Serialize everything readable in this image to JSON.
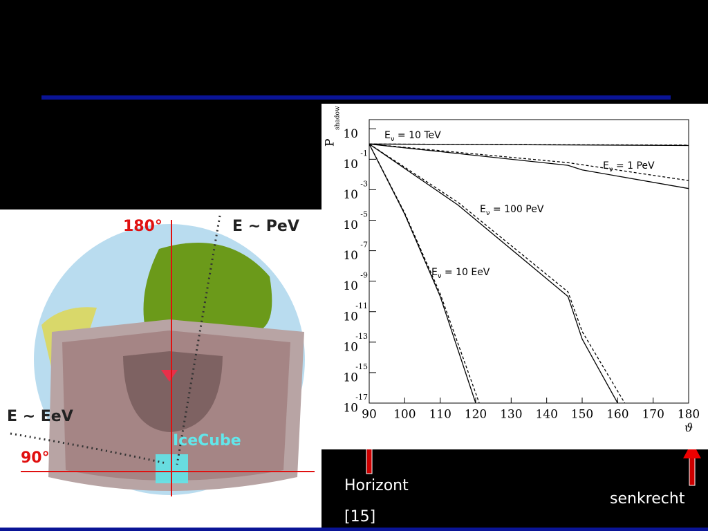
{
  "slide": {
    "angle_180": "180°",
    "label_pev": "E ~ PeV",
    "label_eev": "E ~ EeV",
    "angle_90": "90°",
    "icecube": "IceCube",
    "horizont": "Horizont",
    "citation": "[15]",
    "senkrecht": "senkrecht"
  },
  "chart_data": {
    "type": "line",
    "y_label": "P",
    "y_label_sub": "shadow",
    "x_label": "ϑ",
    "log_y": true,
    "xlim": [
      90,
      180
    ],
    "xticks": [
      90,
      100,
      110,
      120,
      130,
      140,
      150,
      160,
      170,
      180
    ],
    "ylim": [
      1e-17,
      40
    ],
    "yticks": [
      10,
      {
        "value": 0.1,
        "label": "10",
        "exponent": "-1"
      },
      {
        "value": 0.001,
        "label": "10",
        "exponent": "-3"
      },
      {
        "value": 1e-05,
        "label": "10",
        "exponent": "-5"
      },
      {
        "value": 1e-07,
        "label": "10",
        "exponent": "-7"
      },
      {
        "value": 1e-09,
        "label": "10",
        "exponent": "-9"
      },
      {
        "value": 1e-11,
        "label": "10",
        "exponent": "-11"
      },
      {
        "value": 1e-13,
        "label": "10",
        "exponent": "-13"
      },
      {
        "value": 1e-15,
        "label": "10",
        "exponent": "-15"
      },
      {
        "value": 1e-17,
        "label": "10",
        "exponent": "-17"
      }
    ],
    "series": [
      {
        "label": {
          "main": "E",
          "sub": "ν",
          "rest": " = 10 TeV"
        },
        "color": "#000",
        "x": [
          90,
          180
        ],
        "values": [
          1,
          0.8
        ]
      },
      {
        "color": "#000",
        "dashed": true,
        "x": [
          90,
          180
        ],
        "values": [
          1,
          0.85
        ]
      },
      {
        "label": {
          "main": "E",
          "sub": "ν",
          "rest": " = 1 PeV"
        },
        "color": "#000",
        "x": [
          90,
          146,
          150,
          180
        ],
        "values": [
          1,
          0.04,
          0.02,
          0.0012
        ]
      },
      {
        "color": "#000",
        "dashed": true,
        "x": [
          90,
          146,
          180
        ],
        "values": [
          1,
          0.06,
          0.004
        ]
      },
      {
        "label": {
          "main": "E",
          "sub": "ν",
          "rest": " = 100 PeV"
        },
        "color": "#000",
        "x": [
          90,
          100,
          115,
          146,
          150,
          160
        ],
        "values": [
          1,
          0.025,
          0.0001,
          1e-10,
          1.6e-13,
          1e-17
        ]
      },
      {
        "color": "#000",
        "dashed": true,
        "x": [
          90,
          100,
          115,
          146,
          150,
          162
        ],
        "values": [
          1,
          0.03,
          0.00015,
          2e-10,
          5e-13,
          1e-17
        ]
      },
      {
        "label": {
          "main": "E",
          "sub": "ν",
          "rest": " = 10 EeV"
        },
        "color": "#000",
        "x": [
          90,
          100,
          110,
          120
        ],
        "values": [
          1,
          2.5e-05,
          1e-10,
          1e-17
        ]
      },
      {
        "color": "#000",
        "dashed": true,
        "x": [
          90,
          100,
          110,
          121
        ],
        "values": [
          1,
          3e-05,
          1.5e-10,
          1e-17
        ]
      }
    ]
  }
}
